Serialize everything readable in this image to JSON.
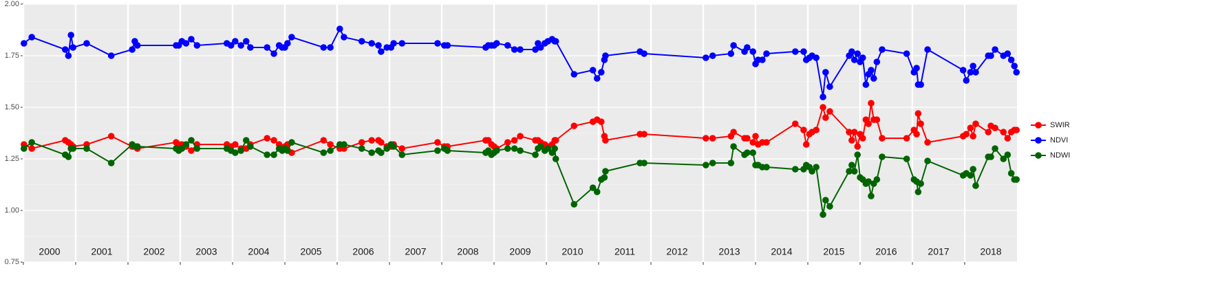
{
  "chart_data": {
    "type": "line",
    "x": [
      2000.01,
      2000.16,
      2000.8,
      2000.86,
      2000.91,
      2000.95,
      2001.21,
      2001.68,
      2002.08,
      2002.13,
      2002.18,
      2002.92,
      2002.97,
      2003.03,
      2003.11,
      2003.21,
      2003.32,
      2003.89,
      2003.97,
      2004.05,
      2004.16,
      2004.26,
      2004.34,
      2004.66,
      2004.79,
      2004.89,
      2004.95,
      2005.0,
      2005.05,
      2005.13,
      2005.74,
      2005.87,
      2006.05,
      2006.13,
      2006.47,
      2006.66,
      2006.79,
      2006.84,
      2006.95,
      2007.03,
      2007.08,
      2007.24,
      2007.92,
      2008.05,
      2008.11,
      2008.84,
      2008.89,
      2008.95,
      2009.0,
      2009.05,
      2009.26,
      2009.39,
      2009.5,
      2009.79,
      2009.84,
      2009.89,
      2009.97,
      2010.03,
      2010.11,
      2010.16,
      2010.18,
      2010.53,
      2010.89,
      2010.97,
      2011.05,
      2011.11,
      2011.13,
      2011.79,
      2011.87,
      2013.05,
      2013.18,
      2013.53,
      2013.58,
      2013.79,
      2013.84,
      2013.95,
      2014.0,
      2014.05,
      2014.13,
      2014.21,
      2014.76,
      2014.92,
      2014.97,
      2015.03,
      2015.08,
      2015.16,
      2015.29,
      2015.34,
      2015.42,
      2015.79,
      2015.84,
      2015.89,
      2015.95,
      2016.0,
      2016.05,
      2016.11,
      2016.16,
      2016.21,
      2016.26,
      2016.32,
      2016.42,
      2016.89,
      2017.03,
      2017.08,
      2017.11,
      2017.16,
      2017.29,
      2017.97,
      2018.03,
      2018.11,
      2018.16,
      2018.21,
      2018.45,
      2018.5,
      2018.58,
      2018.74,
      2018.82,
      2018.89,
      2018.95,
      2018.99
    ],
    "series": [
      {
        "name": "SWIR",
        "color": "#ff0000",
        "values": [
          1.32,
          1.3,
          1.34,
          1.33,
          1.32,
          1.31,
          1.32,
          1.36,
          1.31,
          1.31,
          1.3,
          1.33,
          1.32,
          1.32,
          1.31,
          1.29,
          1.32,
          1.32,
          1.31,
          1.32,
          1.3,
          1.3,
          1.32,
          1.35,
          1.34,
          1.32,
          1.3,
          1.31,
          1.32,
          1.28,
          1.34,
          1.32,
          1.3,
          1.3,
          1.33,
          1.34,
          1.34,
          1.33,
          1.31,
          1.31,
          1.32,
          1.3,
          1.33,
          1.31,
          1.31,
          1.34,
          1.34,
          1.32,
          1.31,
          1.3,
          1.33,
          1.34,
          1.36,
          1.34,
          1.34,
          1.33,
          1.32,
          1.31,
          1.32,
          1.34,
          1.34,
          1.41,
          1.43,
          1.44,
          1.43,
          1.36,
          1.34,
          1.37,
          1.37,
          1.35,
          1.35,
          1.36,
          1.38,
          1.35,
          1.35,
          1.33,
          1.36,
          1.32,
          1.33,
          1.33,
          1.42,
          1.39,
          1.32,
          1.37,
          1.38,
          1.39,
          1.5,
          1.45,
          1.48,
          1.38,
          1.34,
          1.38,
          1.31,
          1.37,
          1.35,
          1.44,
          1.42,
          1.52,
          1.44,
          1.44,
          1.35,
          1.35,
          1.39,
          1.37,
          1.47,
          1.42,
          1.33,
          1.36,
          1.37,
          1.4,
          1.36,
          1.42,
          1.38,
          1.41,
          1.4,
          1.38,
          1.35,
          1.38,
          1.39,
          1.39
        ]
      },
      {
        "name": "NDVI",
        "color": "#0000ff",
        "values": [
          1.81,
          1.84,
          1.78,
          1.75,
          1.85,
          1.79,
          1.81,
          1.75,
          1.78,
          1.82,
          1.8,
          1.8,
          1.8,
          1.82,
          1.81,
          1.83,
          1.8,
          1.81,
          1.8,
          1.82,
          1.8,
          1.82,
          1.79,
          1.79,
          1.76,
          1.8,
          1.79,
          1.79,
          1.81,
          1.84,
          1.79,
          1.79,
          1.88,
          1.84,
          1.82,
          1.81,
          1.8,
          1.77,
          1.79,
          1.79,
          1.81,
          1.81,
          1.81,
          1.8,
          1.8,
          1.79,
          1.8,
          1.8,
          1.8,
          1.81,
          1.8,
          1.78,
          1.78,
          1.78,
          1.81,
          1.79,
          1.81,
          1.82,
          1.83,
          1.82,
          1.82,
          1.66,
          1.68,
          1.64,
          1.67,
          1.73,
          1.75,
          1.77,
          1.76,
          1.74,
          1.75,
          1.76,
          1.8,
          1.77,
          1.79,
          1.77,
          1.71,
          1.73,
          1.73,
          1.76,
          1.77,
          1.77,
          1.73,
          1.74,
          1.75,
          1.74,
          1.55,
          1.67,
          1.6,
          1.75,
          1.77,
          1.73,
          1.76,
          1.72,
          1.74,
          1.61,
          1.66,
          1.68,
          1.64,
          1.72,
          1.78,
          1.76,
          1.67,
          1.69,
          1.61,
          1.61,
          1.78,
          1.68,
          1.63,
          1.67,
          1.7,
          1.67,
          1.75,
          1.75,
          1.78,
          1.75,
          1.76,
          1.73,
          1.7,
          1.67
        ]
      },
      {
        "name": "NDWI",
        "color": "#006400",
        "values": [
          1.3,
          1.33,
          1.27,
          1.26,
          1.3,
          1.3,
          1.3,
          1.23,
          1.32,
          1.31,
          1.31,
          1.3,
          1.29,
          1.3,
          1.32,
          1.34,
          1.3,
          1.3,
          1.29,
          1.28,
          1.29,
          1.34,
          1.31,
          1.27,
          1.27,
          1.3,
          1.29,
          1.3,
          1.29,
          1.33,
          1.28,
          1.29,
          1.32,
          1.32,
          1.3,
          1.28,
          1.29,
          1.28,
          1.3,
          1.32,
          1.31,
          1.27,
          1.29,
          1.3,
          1.29,
          1.28,
          1.29,
          1.27,
          1.28,
          1.29,
          1.3,
          1.3,
          1.29,
          1.27,
          1.3,
          1.31,
          1.29,
          1.3,
          1.28,
          1.3,
          1.25,
          1.03,
          1.11,
          1.09,
          1.15,
          1.16,
          1.19,
          1.23,
          1.23,
          1.22,
          1.23,
          1.23,
          1.31,
          1.27,
          1.28,
          1.28,
          1.22,
          1.22,
          1.21,
          1.21,
          1.2,
          1.2,
          1.22,
          1.21,
          1.19,
          1.21,
          0.98,
          1.05,
          1.02,
          1.19,
          1.22,
          1.19,
          1.27,
          1.16,
          1.15,
          1.13,
          1.14,
          1.07,
          1.13,
          1.15,
          1.26,
          1.25,
          1.15,
          1.14,
          1.09,
          1.13,
          1.24,
          1.17,
          1.18,
          1.17,
          1.2,
          1.12,
          1.26,
          1.26,
          1.3,
          1.25,
          1.27,
          1.18,
          1.15,
          1.15
        ]
      }
    ],
    "xlim": [
      2000,
      2019
    ],
    "xticks": [
      2000,
      2001,
      2002,
      2003,
      2004,
      2005,
      2006,
      2007,
      2008,
      2009,
      2010,
      2011,
      2012,
      2013,
      2014,
      2015,
      2016,
      2017,
      2018
    ],
    "ylim": [
      0.75,
      2.0
    ],
    "yticks": [
      0.75,
      {
        "value": 1.0,
        "label": "1.00"
      },
      1.25,
      {
        "value": 1.5,
        "label": "1.50"
      },
      1.75,
      {
        "value": 2.0,
        "label": "2.00"
      }
    ],
    "grid": true,
    "legend": "right"
  }
}
